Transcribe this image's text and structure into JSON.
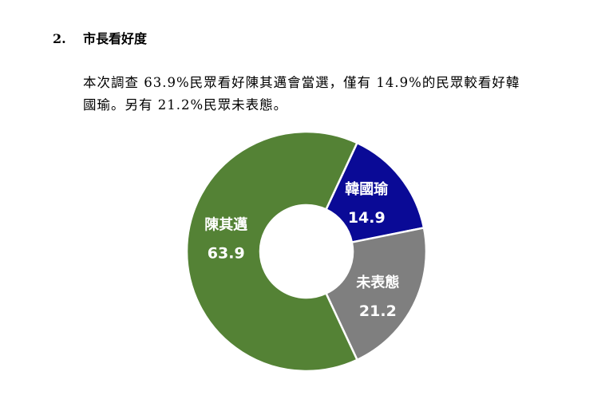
{
  "section": {
    "number": "2.",
    "title": "市長看好度"
  },
  "paragraph": {
    "line1": "本次調查 63.9%民眾看好陳其邁會當選，僅有 14.9%的民眾較看好韓",
    "line2": "國瑜。另有 21.2%民眾未表態。"
  },
  "chart_data": {
    "type": "pie",
    "variant": "donut",
    "title": "",
    "categories": [
      "韓國瑜",
      "未表態",
      "陳其邁"
    ],
    "values": [
      14.9,
      21.2,
      63.9
    ],
    "value_labels": [
      "14.9",
      "21.2",
      "63.9"
    ],
    "colors": [
      "#0a0a96",
      "#7f7f7f",
      "#548235"
    ],
    "slice_border_color": "#ffffff",
    "start": "right of top, clockwise",
    "legend": "none (labels inside slices)"
  }
}
